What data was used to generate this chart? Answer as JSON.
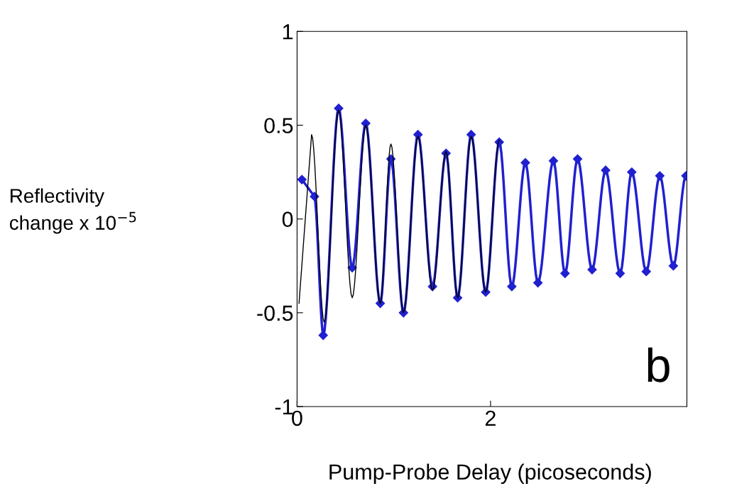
{
  "chart_data": {
    "type": "line",
    "xlabel": "Pump-Probe Delay (picoseconds)",
    "annotations": [
      "b",
      "Reflectivity\nchange x 10$^{−5}$"
    ],
    "xlim": [
      0,
      4.03
    ],
    "ylim": [
      -1,
      1
    ],
    "xticks": [
      0,
      2
    ],
    "yticks": [
      {
        "value": -1,
        "label": "-1"
      },
      {
        "value": -0.5,
        "label": "-0.5"
      },
      0,
      0.5,
      1
    ],
    "grid": false,
    "series": [
      {
        "color": "#000000",
        "marker": "none",
        "x": [
          0.02,
          0.15,
          0.28,
          0.43,
          0.57,
          0.71,
          0.86,
          0.97,
          1.1,
          1.25,
          1.4,
          1.54,
          1.66,
          1.8,
          1.95,
          2.09
        ],
        "values": [
          -0.45,
          0.45,
          -0.55,
          0.58,
          -0.42,
          0.5,
          -0.45,
          0.4,
          -0.5,
          0.44,
          -0.38,
          0.36,
          -0.42,
          0.44,
          -0.39,
          0.42
        ]
      },
      {
        "color": "#2020d0",
        "marker": "diamond",
        "x": [
          0.05,
          0.18,
          0.27,
          0.43,
          0.57,
          0.71,
          0.86,
          0.97,
          1.1,
          1.25,
          1.4,
          1.54,
          1.66,
          1.8,
          1.95,
          2.09,
          2.22,
          2.36,
          2.49,
          2.65,
          2.77,
          2.9,
          3.05,
          3.19,
          3.34,
          3.46,
          3.61,
          3.75,
          3.89,
          4.02
        ],
        "values": [
          0.21,
          0.12,
          -0.62,
          0.59,
          -0.26,
          0.51,
          -0.45,
          0.32,
          -0.5,
          0.45,
          -0.36,
          0.35,
          -0.42,
          0.45,
          -0.39,
          0.41,
          -0.36,
          0.3,
          -0.34,
          0.31,
          -0.29,
          0.32,
          -0.27,
          0.26,
          -0.29,
          0.25,
          -0.28,
          0.23,
          -0.25,
          0.23
        ]
      }
    ]
  }
}
